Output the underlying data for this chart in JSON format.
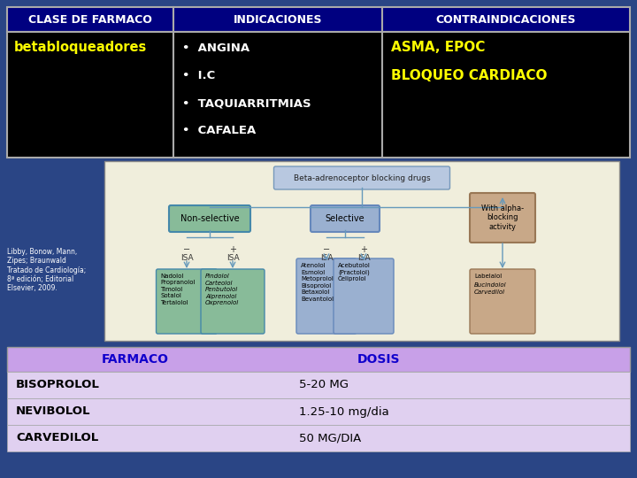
{
  "bg_color": "#2a4585",
  "header_row": {
    "col1": "CLASE DE FARMACO",
    "col2": "INDICACIONES",
    "col3": "CONTRAINDICACIONES",
    "bg": "#000080",
    "text_color": "#ffffff",
    "border_color": "#aaaaaa"
  },
  "data_row": {
    "col1_text": "betabloqueadores",
    "col1_text_color": "#ffff00",
    "col1_bg": "#000000",
    "col2_items": [
      "ANGINA",
      "I.C",
      "TAQUIARRITMIAS",
      "CAFALEA"
    ],
    "col2_bg": "#000000",
    "col2_text_color": "#ffffff",
    "col3_text_line1": "ASMA, EPOC",
    "col3_text_line2": "BLOQUEO CARDIACO",
    "col3_text_color": "#ffff00",
    "col3_bg": "#000000"
  },
  "diag": {
    "bg": "#f0eedc",
    "border": "#888888",
    "title_text": "Beta-adrenoceptor blocking drugs",
    "title_bg": "#b8c8e0",
    "title_border": "#7799bb",
    "ns_text": "Non-selective",
    "ns_bg": "#88bb99",
    "ns_border": "#4488aa",
    "sel_text": "Selective",
    "sel_bg": "#9ab0d0",
    "sel_border": "#6688bb",
    "alpha_text": "With alpha-\nblocking\nactivity",
    "alpha_bg": "#c8a888",
    "alpha_border": "#997755",
    "arrow_color": "#6699bb",
    "line_color": "#6699bb",
    "drugs_ns_neg": "Nadolol\nPropranolol\nTimolol\nSotalol\nTertalolol",
    "drugs_ns_pos": "Pindolol\nCarteolol\nPenbutolol\nAlprenolol\nOxprenolol",
    "drugs_sel_neg": "Atenolol\nEsmolol\nMetoprolol\nBisoprolol\nBetaxolol\nBevantolol",
    "drugs_sel_pos": "Acebutolol\n(Practolol)\nCeliprolol",
    "drugs_alpha_line1": "Labelalol",
    "drugs_alpha_italic": "Bucindolol\nCarvedilol",
    "ref_text": "Libby, Bonow, Mann,\nZipes; Braunwald\nTratado de Cardiología;\n8ª edición; Editorial\nElsevier, 2009.",
    "ref_color": "#ffffff"
  },
  "bottom_table": {
    "header_bg": "#c8a0e8",
    "header_col1": "FARMACO",
    "header_col2": "DOSIS",
    "header_text_color": "#1100cc",
    "row_bg": "#e0d0f0",
    "rows": [
      [
        "BISOPROLOL",
        "5-20 MG"
      ],
      [
        "NEVIBOLOL",
        "1.25-10 mg/dia"
      ],
      [
        "CARVEDILOL",
        "50 MG/DIA"
      ]
    ],
    "row_text_color": "#000000",
    "divider_color": "#aaaaaa"
  }
}
